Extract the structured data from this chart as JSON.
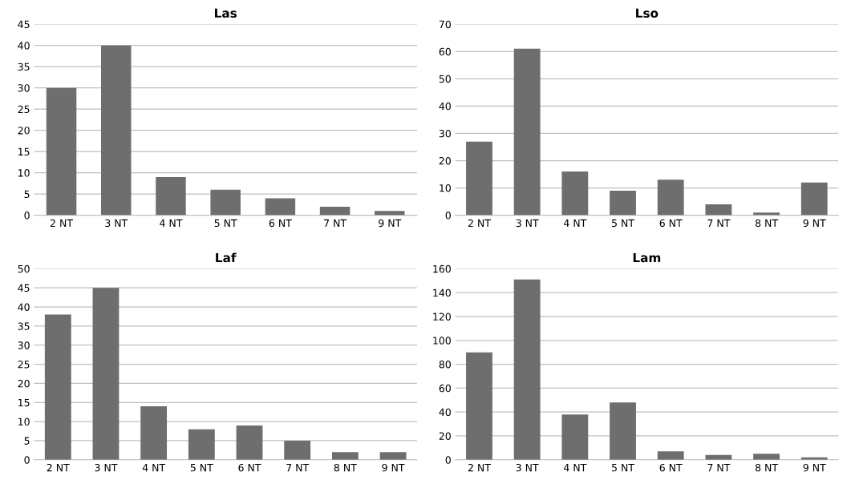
{
  "chart_data": [
    {
      "type": "bar",
      "title": "Las",
      "categories": [
        "2 NT",
        "3 NT",
        "4 NT",
        "5 NT",
        "6 NT",
        "7 NT",
        "9 NT"
      ],
      "values": [
        30,
        40,
        9,
        6,
        4,
        2,
        1
      ],
      "color": "#6e6e6e",
      "ylim": [
        0,
        45
      ],
      "yticks": [
        0,
        5,
        10,
        15,
        20,
        25,
        30,
        35,
        40,
        45
      ],
      "grid": "y"
    },
    {
      "type": "bar",
      "title": "Lso",
      "categories": [
        "2 NT",
        "3 NT",
        "4 NT",
        "5 NT",
        "6 NT",
        "7 NT",
        "8 NT",
        "9 NT"
      ],
      "values": [
        27,
        61,
        16,
        9,
        13,
        4,
        1,
        12
      ],
      "color": "#6e6e6e",
      "ylim": [
        0,
        70
      ],
      "yticks": [
        0,
        10,
        20,
        30,
        40,
        50,
        60,
        70
      ],
      "grid": "y"
    },
    {
      "type": "bar",
      "title": "Laf",
      "categories": [
        "2 NT",
        "3 NT",
        "4 NT",
        "5 NT",
        "6 NT",
        "7 NT",
        "8 NT",
        "9 NT"
      ],
      "values": [
        38,
        45,
        14,
        8,
        9,
        5,
        2,
        2
      ],
      "color": "#6e6e6e",
      "ylim": [
        0,
        50
      ],
      "yticks": [
        0,
        5,
        10,
        15,
        20,
        25,
        30,
        35,
        40,
        45,
        50
      ],
      "grid": "y"
    },
    {
      "type": "bar",
      "title": "Lam",
      "categories": [
        "2 NT",
        "3 NT",
        "4 NT",
        "5 NT",
        "6 NT",
        "7 NT",
        "8 NT",
        "9 NT"
      ],
      "values": [
        90,
        151,
        38,
        48,
        7,
        4,
        5,
        2
      ],
      "color": "#6e6e6e",
      "ylim": [
        0,
        160
      ],
      "yticks": [
        0,
        20,
        40,
        60,
        80,
        100,
        120,
        140,
        160
      ],
      "grid": "y"
    }
  ]
}
